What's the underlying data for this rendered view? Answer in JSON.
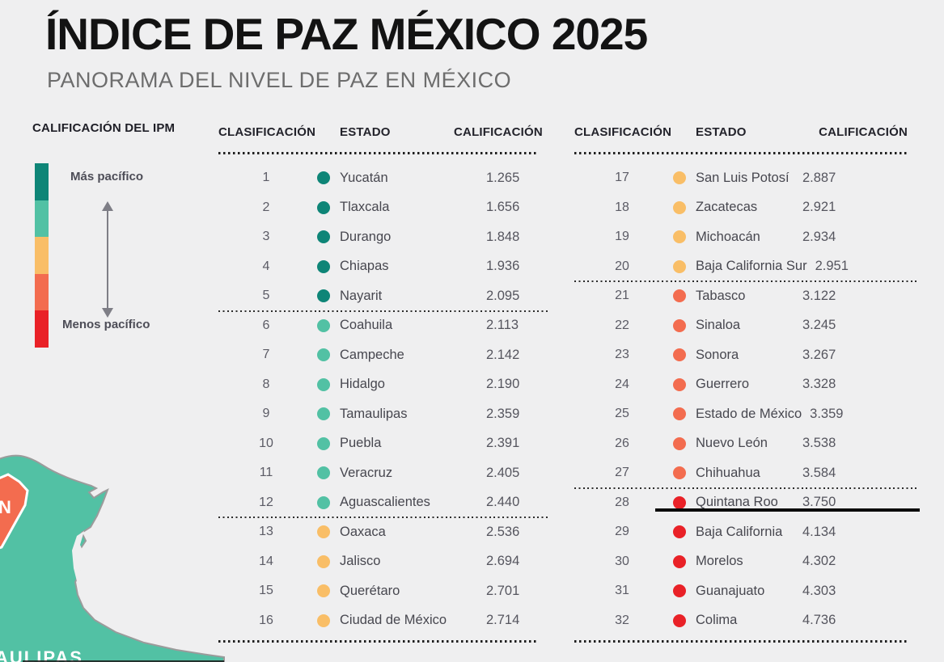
{
  "header": {
    "title": "ÍNDICE DE PAZ MÉXICO 2025",
    "subtitle": "PANORAMA DEL NIVEL DE PAZ EN MÉXICO"
  },
  "legend": {
    "title": "CALIFICACIÓN DEL IPM",
    "more_peaceful": "Más pacífico",
    "less_peaceful": "Menos pacífico",
    "scale_colors": [
      "#0E8577",
      "#52C1A4",
      "#F9BE67",
      "#F36C4F",
      "#E92127"
    ]
  },
  "table_headers": {
    "rank": "CLASIFICACIÓN",
    "state": "ESTADO",
    "score": "CALIFICACIÓN"
  },
  "tables": [
    {
      "rows": [
        {
          "rank": "1",
          "state": "Yucatán",
          "score": "1.265",
          "tier": 0
        },
        {
          "rank": "2",
          "state": "Tlaxcala",
          "score": "1.656",
          "tier": 0
        },
        {
          "rank": "3",
          "state": "Durango",
          "score": "1.848",
          "tier": 0
        },
        {
          "rank": "4",
          "state": "Chiapas",
          "score": "1.936",
          "tier": 0
        },
        {
          "rank": "5",
          "state": "Nayarit",
          "score": "2.095",
          "tier": 0,
          "sep_after": true
        },
        {
          "rank": "6",
          "state": "Coahuila",
          "score": "2.113",
          "tier": 1
        },
        {
          "rank": "7",
          "state": "Campeche",
          "score": "2.142",
          "tier": 1
        },
        {
          "rank": "8",
          "state": "Hidalgo",
          "score": "2.190",
          "tier": 1
        },
        {
          "rank": "9",
          "state": "Tamaulipas",
          "score": "2.359",
          "tier": 1
        },
        {
          "rank": "10",
          "state": "Puebla",
          "score": "2.391",
          "tier": 1
        },
        {
          "rank": "11",
          "state": "Veracruz",
          "score": "2.405",
          "tier": 1
        },
        {
          "rank": "12",
          "state": "Aguascalientes",
          "score": "2.440",
          "tier": 1,
          "sep_after": true
        },
        {
          "rank": "13",
          "state": "Oaxaca",
          "score": "2.536",
          "tier": 2
        },
        {
          "rank": "14",
          "state": "Jalisco",
          "score": "2.694",
          "tier": 2
        },
        {
          "rank": "15",
          "state": "Querétaro",
          "score": "2.701",
          "tier": 2
        },
        {
          "rank": "16",
          "state": "Ciudad de México",
          "score": "2.714",
          "tier": 2
        }
      ]
    },
    {
      "rows": [
        {
          "rank": "17",
          "state": "San Luis Potosí",
          "score": "2.887",
          "tier": 2
        },
        {
          "rank": "18",
          "state": "Zacatecas",
          "score": "2.921",
          "tier": 2
        },
        {
          "rank": "19",
          "state": "Michoacán",
          "score": "2.934",
          "tier": 2
        },
        {
          "rank": "20",
          "state": "Baja California Sur",
          "score": "2.951",
          "tier": 2,
          "sep_after": true
        },
        {
          "rank": "21",
          "state": "Tabasco",
          "score": "3.122",
          "tier": 3
        },
        {
          "rank": "22",
          "state": "Sinaloa",
          "score": "3.245",
          "tier": 3
        },
        {
          "rank": "23",
          "state": "Sonora",
          "score": "3.267",
          "tier": 3
        },
        {
          "rank": "24",
          "state": "Guerrero",
          "score": "3.328",
          "tier": 3
        },
        {
          "rank": "25",
          "state": "Estado de México",
          "score": "3.359",
          "tier": 3
        },
        {
          "rank": "26",
          "state": "Nuevo León",
          "score": "3.538",
          "tier": 3
        },
        {
          "rank": "27",
          "state": "Chihuahua",
          "score": "3.584",
          "tier": 3,
          "sep_after": true
        },
        {
          "rank": "28",
          "state": "Quintana Roo",
          "score": "3.750",
          "tier": 4,
          "underline": true
        },
        {
          "rank": "29",
          "state": "Baja California",
          "score": "4.134",
          "tier": 4
        },
        {
          "rank": "30",
          "state": "Morelos",
          "score": "4.302",
          "tier": 4
        },
        {
          "rank": "31",
          "state": "Guanajuato",
          "score": "4.303",
          "tier": 4
        },
        {
          "rank": "32",
          "state": "Colima",
          "score": "4.736",
          "tier": 4
        }
      ]
    }
  ],
  "map": {
    "land_color": "#52C1A4",
    "highlight_color": "#F36C4F",
    "label_fragment": "AULIPAS",
    "region_letter": "N"
  },
  "chart_data": {
    "type": "table",
    "title": "ÍNDICE DE PAZ MÉXICO 2025",
    "subtitle": "PANORAMA DEL NIVEL DE PAZ EN MÉXICO",
    "columns": [
      "CLASIFICACIÓN",
      "ESTADO",
      "CALIFICACIÓN"
    ],
    "legend_title": "CALIFICACIÓN DEL IPM",
    "legend_scale": [
      "Más pacífico",
      "Menos pacífico"
    ],
    "tier_colors": [
      "#0E8577",
      "#52C1A4",
      "#F9BE67",
      "#F36C4F",
      "#E92127"
    ],
    "rows": [
      [
        1,
        "Yucatán",
        1.265
      ],
      [
        2,
        "Tlaxcala",
        1.656
      ],
      [
        3,
        "Durango",
        1.848
      ],
      [
        4,
        "Chiapas",
        1.936
      ],
      [
        5,
        "Nayarit",
        2.095
      ],
      [
        6,
        "Coahuila",
        2.113
      ],
      [
        7,
        "Campeche",
        2.142
      ],
      [
        8,
        "Hidalgo",
        2.19
      ],
      [
        9,
        "Tamaulipas",
        2.359
      ],
      [
        10,
        "Puebla",
        2.391
      ],
      [
        11,
        "Veracruz",
        2.405
      ],
      [
        12,
        "Aguascalientes",
        2.44
      ],
      [
        13,
        "Oaxaca",
        2.536
      ],
      [
        14,
        "Jalisco",
        2.694
      ],
      [
        15,
        "Querétaro",
        2.701
      ],
      [
        16,
        "Ciudad de México",
        2.714
      ],
      [
        17,
        "San Luis Potosí",
        2.887
      ],
      [
        18,
        "Zacatecas",
        2.921
      ],
      [
        19,
        "Michoacán",
        2.934
      ],
      [
        20,
        "Baja California Sur",
        2.951
      ],
      [
        21,
        "Tabasco",
        3.122
      ],
      [
        22,
        "Sinaloa",
        3.245
      ],
      [
        23,
        "Sonora",
        3.267
      ],
      [
        24,
        "Guerrero",
        3.328
      ],
      [
        25,
        "Estado de México",
        3.359
      ],
      [
        26,
        "Nuevo León",
        3.538
      ],
      [
        27,
        "Chihuahua",
        3.584
      ],
      [
        28,
        "Quintana Roo",
        3.75
      ],
      [
        29,
        "Baja California",
        4.134
      ],
      [
        30,
        "Morelos",
        4.302
      ],
      [
        31,
        "Guanajuato",
        4.303
      ],
      [
        32,
        "Colima",
        4.736
      ]
    ],
    "annotation": "Quintana Roo (28) underlined in black"
  }
}
